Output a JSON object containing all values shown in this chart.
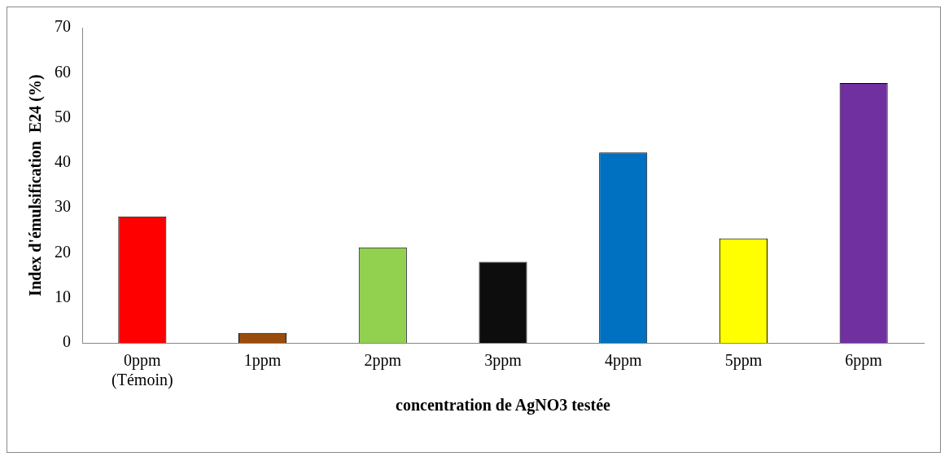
{
  "chart_data": {
    "type": "bar",
    "xlabel": "concentration de AgNO3 testée",
    "ylabel": "Index d'émulsification  E24 (%)",
    "categories": [
      "0ppm\n(Témoin)",
      "1ppm",
      "2ppm",
      "3ppm",
      "4ppm",
      "5ppm",
      "6ppm"
    ],
    "values": [
      28.1,
      2.2,
      21.2,
      18.0,
      42.3,
      23.2,
      57.7
    ],
    "colors": [
      "#ff0000",
      "#994c0c",
      "#92d050",
      "#0d0d0d",
      "#0070c0",
      "#ffff00",
      "#7030a0"
    ],
    "ylim": [
      0,
      70
    ],
    "yticks": [
      0,
      10,
      20,
      30,
      40,
      50,
      60,
      70
    ],
    "grid": false,
    "legend": false
  }
}
